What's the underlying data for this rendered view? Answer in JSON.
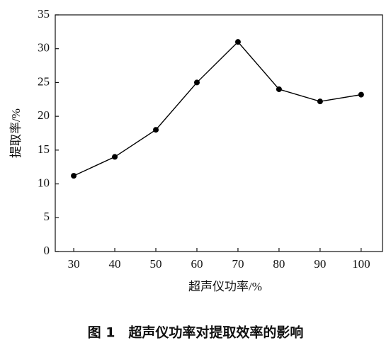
{
  "chart_data": {
    "type": "line",
    "title": "图 1　超声仪功率对提取效率的影响",
    "xlabel": "超声仪功率/%",
    "ylabel": "提取率/%",
    "x": [
      30,
      40,
      50,
      60,
      70,
      80,
      90,
      100
    ],
    "series": [
      {
        "name": "提取率",
        "color": "#000000",
        "values": [
          11.2,
          14,
          18,
          25,
          31,
          24,
          22.2,
          23.2
        ]
      }
    ],
    "xlim": [
      25.5,
      105.2
    ],
    "xticks": [
      30,
      40,
      50,
      60,
      70,
      80,
      90,
      100
    ],
    "ylim": [
      0,
      35
    ],
    "yticks": [
      0,
      5,
      10,
      15,
      20,
      25,
      30,
      35
    ],
    "grid": false
  }
}
